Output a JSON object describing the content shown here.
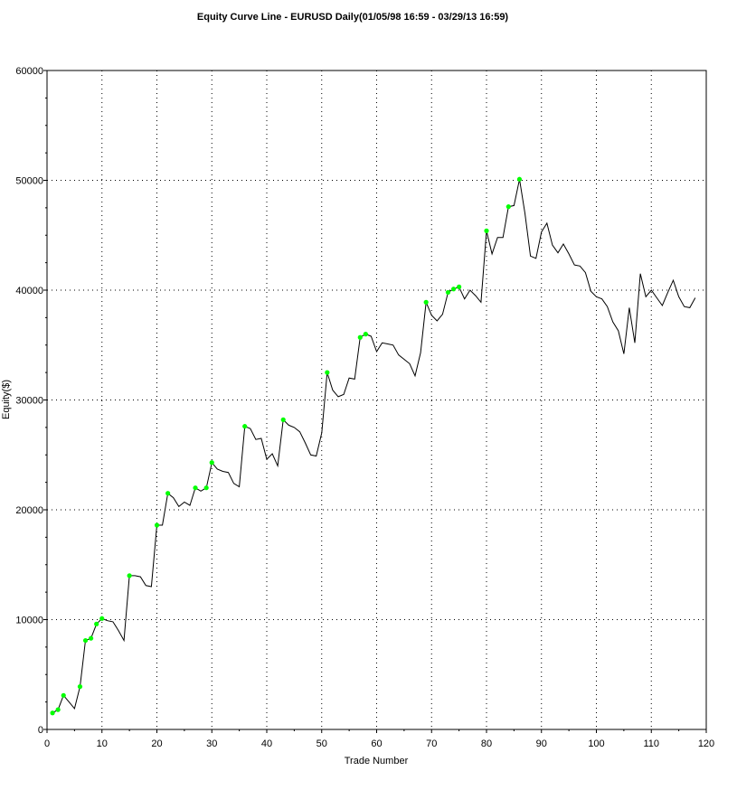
{
  "chart_data": {
    "type": "line",
    "title": "Equity Curve Line - EURUSD Daily(01/05/98 16:59 - 03/29/13 16:59)",
    "x_label": "Trade Number",
    "y_label": "Equity($)",
    "xlim": [
      0,
      120
    ],
    "xticks": [
      0,
      10,
      20,
      30,
      40,
      50,
      60,
      70,
      80,
      90,
      100,
      110,
      120
    ],
    "ylim": [
      0,
      60000
    ],
    "yticks": [
      0,
      10000,
      20000,
      30000,
      40000,
      50000,
      60000
    ],
    "grid": true,
    "color": "#000000",
    "x": [
      1,
      2,
      3,
      4,
      5,
      6,
      7,
      8,
      9,
      10,
      11,
      12,
      13,
      14,
      15,
      16,
      17,
      18,
      19,
      20,
      21,
      22,
      23,
      24,
      25,
      26,
      27,
      28,
      29,
      30,
      31,
      32,
      33,
      34,
      35,
      36,
      37,
      38,
      39,
      40,
      41,
      42,
      43,
      44,
      45,
      46,
      47,
      48,
      49,
      50,
      51,
      52,
      53,
      54,
      55,
      56,
      57,
      58,
      59,
      60,
      61,
      62,
      63,
      64,
      65,
      66,
      67,
      68,
      69,
      70,
      71,
      72,
      73,
      74,
      75,
      76,
      77,
      78,
      79,
      80,
      81,
      82,
      83,
      84,
      85,
      86,
      87,
      88,
      89,
      90,
      91,
      92,
      93,
      94,
      95,
      96,
      97,
      98,
      99,
      100,
      101,
      102,
      103,
      104,
      105,
      106,
      107,
      108,
      109,
      110,
      111,
      112,
      113,
      114,
      115,
      116,
      117,
      118
    ],
    "values": [
      1500,
      1800,
      3100,
      2500,
      1900,
      3900,
      8100,
      8300,
      9600,
      10100,
      9900,
      9800,
      9000,
      8100,
      14000,
      14000,
      13900,
      13100,
      13000,
      18600,
      18600,
      21500,
      21100,
      20300,
      20700,
      20400,
      22000,
      21700,
      22000,
      24300,
      23700,
      23500,
      23400,
      22400,
      22100,
      27600,
      27400,
      26400,
      26500,
      24600,
      25100,
      24000,
      28200,
      27700,
      27500,
      27100,
      26100,
      25000,
      24900,
      27000,
      32500,
      30900,
      30300,
      30500,
      32000,
      31900,
      35700,
      36000,
      35800,
      34400,
      35200,
      35100,
      35000,
      34100,
      33700,
      33300,
      32200,
      34300,
      38900,
      37700,
      37200,
      37800,
      39800,
      40100,
      40300,
      39200,
      40000,
      39500,
      38900,
      45400,
      43300,
      44800,
      44800,
      47600,
      47700,
      50100,
      47000,
      43100,
      42900,
      45300,
      46100,
      44100,
      43400,
      44200,
      43300,
      42300,
      42200,
      41600,
      39900,
      39400,
      39200,
      38500,
      37100,
      36300,
      34200,
      38400,
      35200,
      41500,
      39400,
      40000,
      39300,
      38600,
      39800,
      40900,
      39400,
      38500,
      38400,
      39300
    ],
    "highs": {
      "color": "#00ff00",
      "x": [
        1,
        2,
        3,
        6,
        7,
        8,
        9,
        10,
        15,
        20,
        22,
        27,
        29,
        30,
        36,
        43,
        51,
        57,
        58,
        69,
        73,
        74,
        75,
        80,
        84,
        86
      ],
      "values": [
        1500,
        1800,
        3100,
        3900,
        8100,
        8300,
        9600,
        10100,
        14000,
        18600,
        21500,
        22000,
        22000,
        24300,
        27600,
        28200,
        32500,
        35700,
        36000,
        38900,
        39800,
        40100,
        40300,
        45400,
        47600,
        50100
      ]
    }
  }
}
